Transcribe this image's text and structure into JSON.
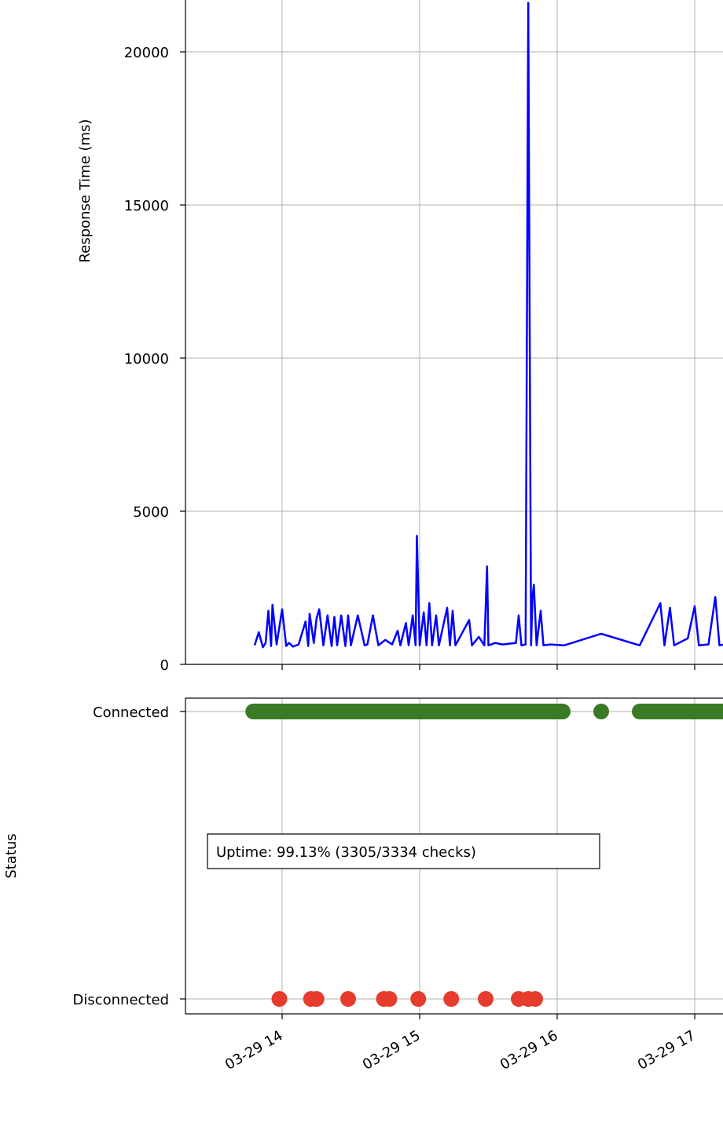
{
  "chart_data": [
    {
      "type": "line",
      "title": "",
      "xlabel": "",
      "ylabel": "Response Time (ms)",
      "ylim": [
        0,
        21600
      ],
      "yticks": [
        0,
        5000,
        10000,
        15000,
        20000
      ],
      "ytick_labels": [
        "0",
        "5000",
        "10000",
        "15000",
        "20000"
      ],
      "x_unit": "hours since 03-29 00:00",
      "xlim": [
        13.3,
        17.22
      ],
      "grid": true,
      "series_color": "#0000ff",
      "baseline_ms": 600,
      "points": [
        [
          13.8,
          620
        ],
        [
          13.83,
          1050
        ],
        [
          13.86,
          560
        ],
        [
          13.88,
          700
        ],
        [
          13.9,
          1750
        ],
        [
          13.92,
          600
        ],
        [
          13.93,
          1950
        ],
        [
          13.96,
          650
        ],
        [
          14.0,
          1800
        ],
        [
          14.03,
          600
        ],
        [
          14.05,
          700
        ],
        [
          14.08,
          580
        ],
        [
          14.12,
          650
        ],
        [
          14.17,
          1400
        ],
        [
          14.19,
          600
        ],
        [
          14.2,
          1650
        ],
        [
          14.23,
          700
        ],
        [
          14.25,
          1500
        ],
        [
          14.27,
          1800
        ],
        [
          14.3,
          620
        ],
        [
          14.33,
          1600
        ],
        [
          14.36,
          600
        ],
        [
          14.38,
          1550
        ],
        [
          14.4,
          620
        ],
        [
          14.43,
          1600
        ],
        [
          14.46,
          600
        ],
        [
          14.48,
          1600
        ],
        [
          14.5,
          620
        ],
        [
          14.55,
          1600
        ],
        [
          14.6,
          620
        ],
        [
          14.62,
          650
        ],
        [
          14.66,
          1600
        ],
        [
          14.7,
          620
        ],
        [
          14.75,
          800
        ],
        [
          14.8,
          650
        ],
        [
          14.84,
          1100
        ],
        [
          14.86,
          620
        ],
        [
          14.9,
          1350
        ],
        [
          14.92,
          620
        ],
        [
          14.95,
          1600
        ],
        [
          14.97,
          620
        ],
        [
          14.98,
          4200
        ],
        [
          15.0,
          620
        ],
        [
          15.03,
          1700
        ],
        [
          15.05,
          620
        ],
        [
          15.07,
          2000
        ],
        [
          15.09,
          620
        ],
        [
          15.12,
          1600
        ],
        [
          15.14,
          620
        ],
        [
          15.2,
          1850
        ],
        [
          15.22,
          620
        ],
        [
          15.24,
          1750
        ],
        [
          15.26,
          620
        ],
        [
          15.36,
          1450
        ],
        [
          15.38,
          620
        ],
        [
          15.43,
          900
        ],
        [
          15.47,
          620
        ],
        [
          15.49,
          3200
        ],
        [
          15.5,
          620
        ],
        [
          15.55,
          700
        ],
        [
          15.6,
          650
        ],
        [
          15.7,
          700
        ],
        [
          15.72,
          1600
        ],
        [
          15.74,
          620
        ],
        [
          15.77,
          650
        ],
        [
          15.79,
          21600
        ],
        [
          15.81,
          620
        ],
        [
          15.82,
          2200
        ],
        [
          15.83,
          2600
        ],
        [
          15.85,
          620
        ],
        [
          15.88,
          1750
        ],
        [
          15.9,
          620
        ],
        [
          15.95,
          650
        ],
        [
          16.05,
          620
        ],
        [
          16.32,
          1000
        ],
        [
          16.6,
          620
        ],
        [
          16.75,
          2000
        ],
        [
          16.78,
          620
        ],
        [
          16.82,
          1850
        ],
        [
          16.85,
          620
        ],
        [
          16.95,
          850
        ],
        [
          17.0,
          1900
        ],
        [
          17.03,
          620
        ],
        [
          17.1,
          650
        ],
        [
          17.15,
          2200
        ],
        [
          17.18,
          620
        ],
        [
          17.22,
          650
        ]
      ]
    },
    {
      "type": "scatter",
      "title": "",
      "xlabel": "",
      "ylabel": "Status",
      "categories": [
        "Disconnected",
        "Connected"
      ],
      "x_unit": "hours since 03-29 00:00",
      "xlim": [
        13.3,
        17.22
      ],
      "xticks": [
        14,
        15,
        16,
        17
      ],
      "xtick_labels": [
        "03-29 14",
        "03-29 15",
        "03-29 16",
        "03-29 17"
      ],
      "grid": true,
      "annotation": "Uptime: 99.13% (3305/3334 checks)",
      "connected_color": "#3a7a24",
      "disconnected_color": "#e63c2e",
      "connected_ranges": [
        [
          13.79,
          16.04
        ],
        [
          16.6,
          17.22
        ]
      ],
      "connected_points": [
        16.32
      ],
      "disconnected_points": [
        13.98,
        14.21,
        14.25,
        14.48,
        14.74,
        14.78,
        14.99,
        15.23,
        15.48,
        15.72,
        15.79,
        15.84
      ]
    }
  ]
}
